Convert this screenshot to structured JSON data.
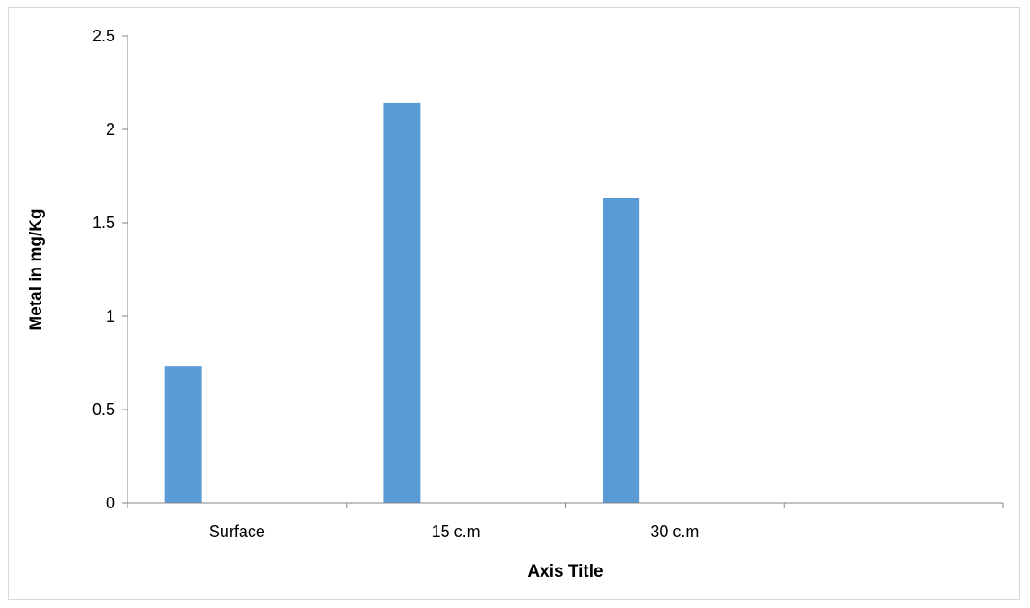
{
  "chart_data": {
    "type": "bar",
    "categories": [
      "Surface",
      "15 c.m",
      "30 c.m",
      ""
    ],
    "series": [
      {
        "values": [
          0.73,
          2.14,
          1.63,
          null
        ],
        "color": "#5b9bd5"
      }
    ],
    "title": "",
    "xlabel": "Axis Title",
    "ylabel": "Metal in mg/Kg",
    "ylim": [
      0,
      2.5
    ],
    "yticks": [
      "0",
      "0.5",
      "1",
      "1.5",
      "2",
      "2.5"
    ],
    "grid": false,
    "legend": "none",
    "axis_color": "#868686",
    "frame_color": "#d9d9d9"
  }
}
